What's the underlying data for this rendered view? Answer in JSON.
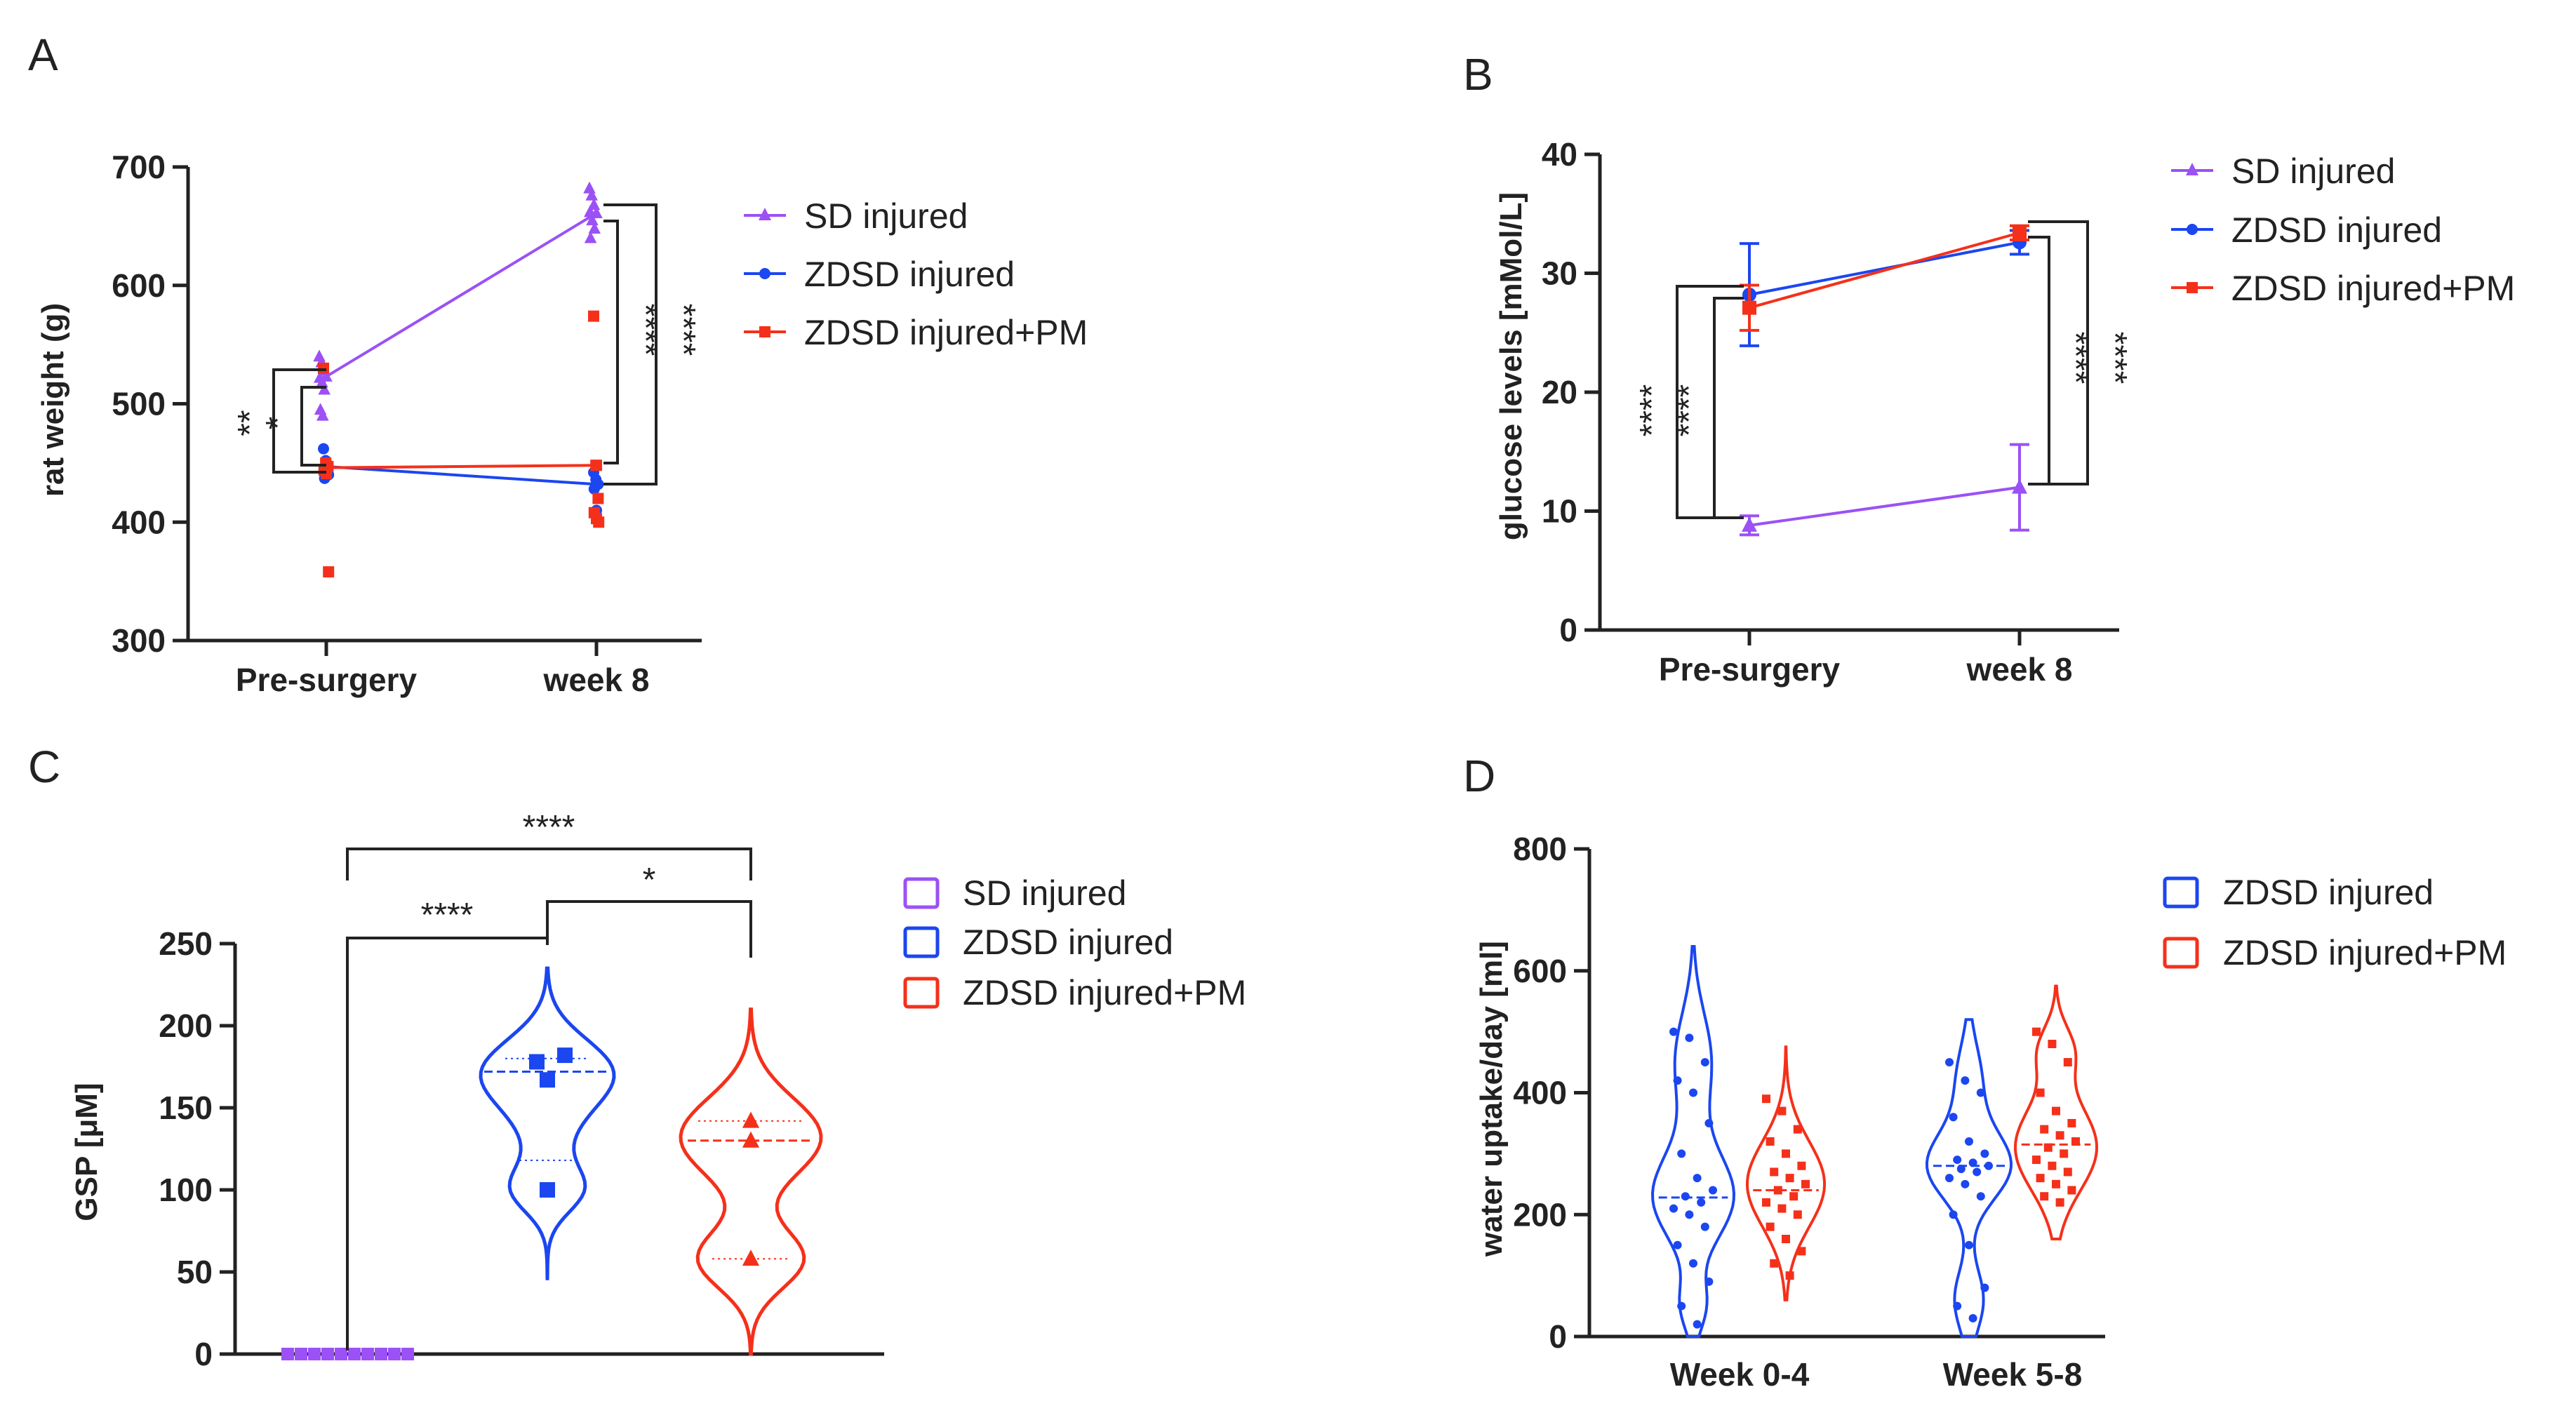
{
  "colors": {
    "sd": "#9b51f5",
    "zdsd": "#1b46f0",
    "pm": "#f5301a",
    "axis": "#222222"
  },
  "chart_data": [
    {
      "panel": "A",
      "type": "line+scatter",
      "title": "",
      "xlabel": "",
      "ylabel": "rat weight (g)",
      "categories": [
        "Pre-surgery",
        "week 8"
      ],
      "ylim": [
        300,
        700
      ],
      "yticks": [
        300,
        400,
        500,
        600,
        700
      ],
      "series": [
        {
          "name": "SD injured",
          "color": "#9b51f5",
          "marker": "triangle",
          "values": [
            523,
            661
          ],
          "points": [
            [
              540,
              535,
              528,
              522,
              518,
              512,
              495,
              490
            ],
            [
              682,
              676,
              668,
              662,
              655,
              648,
              640
            ]
          ]
        },
        {
          "name": "ZDSD injured",
          "color": "#1b46f0",
          "marker": "circle",
          "values": [
            447,
            432
          ],
          "points": [
            [
              462,
              452,
              448,
              445,
              442,
              440,
              437
            ],
            [
              442,
              436,
              432,
              428,
              410
            ]
          ]
        },
        {
          "name": "ZDSD injured+PM",
          "color": "#f5301a",
          "marker": "square",
          "values": [
            446,
            448
          ],
          "points": [
            [
              530,
              450,
              447,
              444,
              441,
              358
            ],
            [
              574,
              448,
              420,
              408,
              403,
              400
            ]
          ]
        }
      ],
      "significance": [
        {
          "group": "Pre-surgery",
          "label": "**"
        },
        {
          "group": "Pre-surgery",
          "label": "*"
        },
        {
          "group": "week 8",
          "label": "****"
        },
        {
          "group": "week 8",
          "label": "****"
        }
      ]
    },
    {
      "panel": "B",
      "type": "line",
      "title": "",
      "xlabel": "",
      "ylabel": "glucose levels [mMol/L]",
      "categories": [
        "Pre-surgery",
        "week 8"
      ],
      "ylim": [
        0,
        40
      ],
      "yticks": [
        0,
        10,
        20,
        30,
        40
      ],
      "series": [
        {
          "name": "SD injured",
          "color": "#9b51f5",
          "marker": "triangle",
          "values": [
            8.8,
            12.0
          ],
          "error": [
            0.8,
            3.6
          ]
        },
        {
          "name": "ZDSD injured",
          "color": "#1b46f0",
          "marker": "circle",
          "values": [
            28.2,
            32.6
          ],
          "error": [
            4.3,
            1.0
          ]
        },
        {
          "name": "ZDSD injured+PM",
          "color": "#f5301a",
          "marker": "square",
          "values": [
            27.1,
            33.4
          ],
          "error": [
            1.9,
            0.6
          ]
        }
      ],
      "significance": [
        {
          "group": "Pre-surgery",
          "label": "****"
        },
        {
          "group": "Pre-surgery",
          "label": "****"
        },
        {
          "group": "week 8",
          "label": "****"
        },
        {
          "group": "week 8",
          "label": "****"
        }
      ]
    },
    {
      "panel": "C",
      "type": "violin",
      "title": "",
      "xlabel": "",
      "ylabel": "GSP [μM]",
      "ylim": [
        0,
        250
      ],
      "yticks": [
        0,
        50,
        100,
        150,
        200,
        250
      ],
      "groups": [
        {
          "name": "SD injured",
          "color": "#9b51f5",
          "marker": "square",
          "points": [
            0,
            0,
            0,
            0,
            0,
            0,
            0,
            0,
            0,
            0
          ]
        },
        {
          "name": "ZDSD injured",
          "color": "#1b46f0",
          "marker": "square",
          "points": [
            182,
            178,
            167,
            100
          ],
          "median": 172,
          "range": [
            45,
            235
          ]
        },
        {
          "name": "ZDSD injured+PM",
          "color": "#f5301a",
          "marker": "triangle",
          "points": [
            142,
            130,
            58
          ],
          "median": 130,
          "range": [
            0,
            210
          ]
        }
      ],
      "significance": [
        {
          "from": "SD injured",
          "to": "ZDSD injured+PM",
          "label": "****"
        },
        {
          "from": "SD injured",
          "to": "ZDSD injured",
          "label": "****"
        },
        {
          "from": "ZDSD injured",
          "to": "ZDSD injured+PM",
          "label": "*"
        }
      ]
    },
    {
      "panel": "D",
      "type": "violin",
      "title": "",
      "xlabel": "",
      "ylabel": "water uptake/day [ml]",
      "categories": [
        "Week 0-4",
        "Week 5-8"
      ],
      "ylim": [
        0,
        800
      ],
      "yticks": [
        0,
        200,
        400,
        600,
        800
      ],
      "series": [
        {
          "name": "ZDSD injured",
          "color": "#1b46f0",
          "marker": "circle",
          "points": [
            [
              500,
              490,
              450,
              420,
              400,
              350,
              300,
              260,
              240,
              230,
              220,
              210,
              200,
              180,
              150,
              120,
              90,
              50,
              20
            ],
            [
              450,
              420,
              400,
              360,
              320,
              300,
              290,
              285,
              280,
              275,
              270,
              260,
              250,
              230,
              200,
              150,
              80,
              50,
              30
            ]
          ],
          "median": [
            228,
            280
          ]
        },
        {
          "name": "ZDSD injured+PM",
          "color": "#f5301a",
          "marker": "square",
          "points": [
            [
              390,
              370,
              340,
              320,
              300,
              280,
              270,
              260,
              250,
              240,
              230,
              220,
              210,
              200,
              180,
              160,
              140,
              120,
              100
            ],
            [
              500,
              480,
              450,
              400,
              370,
              350,
              340,
              330,
              320,
              310,
              300,
              290,
              280,
              270,
              260,
              250,
              240,
              230,
              220
            ]
          ],
          "median": [
            240,
            315
          ]
        }
      ]
    }
  ]
}
